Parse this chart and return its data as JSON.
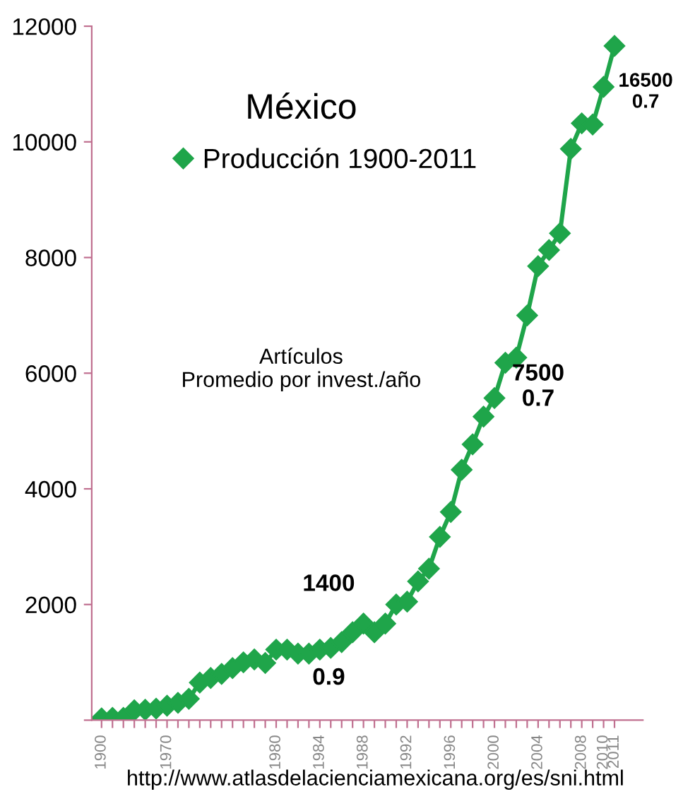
{
  "chart_data": {
    "type": "line",
    "title": "México",
    "categories": [
      "1900",
      null,
      null,
      null,
      null,
      null,
      "1970",
      null,
      null,
      null,
      null,
      null,
      null,
      null,
      null,
      null,
      "1980",
      null,
      null,
      null,
      "1984",
      null,
      null,
      null,
      "1988",
      null,
      null,
      null,
      "1992",
      null,
      null,
      null,
      "1996",
      null,
      null,
      null,
      "2000",
      null,
      null,
      null,
      "2004",
      null,
      null,
      null,
      "2008",
      null,
      "2010",
      "2011"
    ],
    "series": [
      {
        "name": "Producción 1900-2011",
        "color": "#1fa54a",
        "values": [
          30,
          40,
          40,
          170,
          180,
          200,
          250,
          300,
          370,
          650,
          730,
          800,
          900,
          1000,
          1050,
          990,
          1220,
          1220,
          1150,
          1150,
          1220,
          1250,
          1350,
          1520,
          1670,
          1520,
          1670,
          2000,
          2050,
          2400,
          2620,
          3170,
          3600,
          4330,
          4770,
          5250,
          5570,
          6180,
          6270,
          7000,
          7850,
          8130,
          8420,
          9880,
          10320,
          10300,
          10950,
          11660
        ]
      }
    ],
    "ylim": [
      0,
      12000
    ],
    "yticks": [
      {
        "value": 0,
        "label": null
      },
      2000,
      4000,
      6000,
      8000,
      10000,
      12000
    ],
    "marker": "diamond",
    "line_style": "solid",
    "grid": false,
    "legend": "top",
    "annotations": [
      "Artículos\nPromedio por invest./año",
      "1400",
      "0.9",
      "7500\n0.7",
      "16500\n0.7",
      "http://www.atlasdelacienciamexicana.org/es/sni.html"
    ]
  }
}
